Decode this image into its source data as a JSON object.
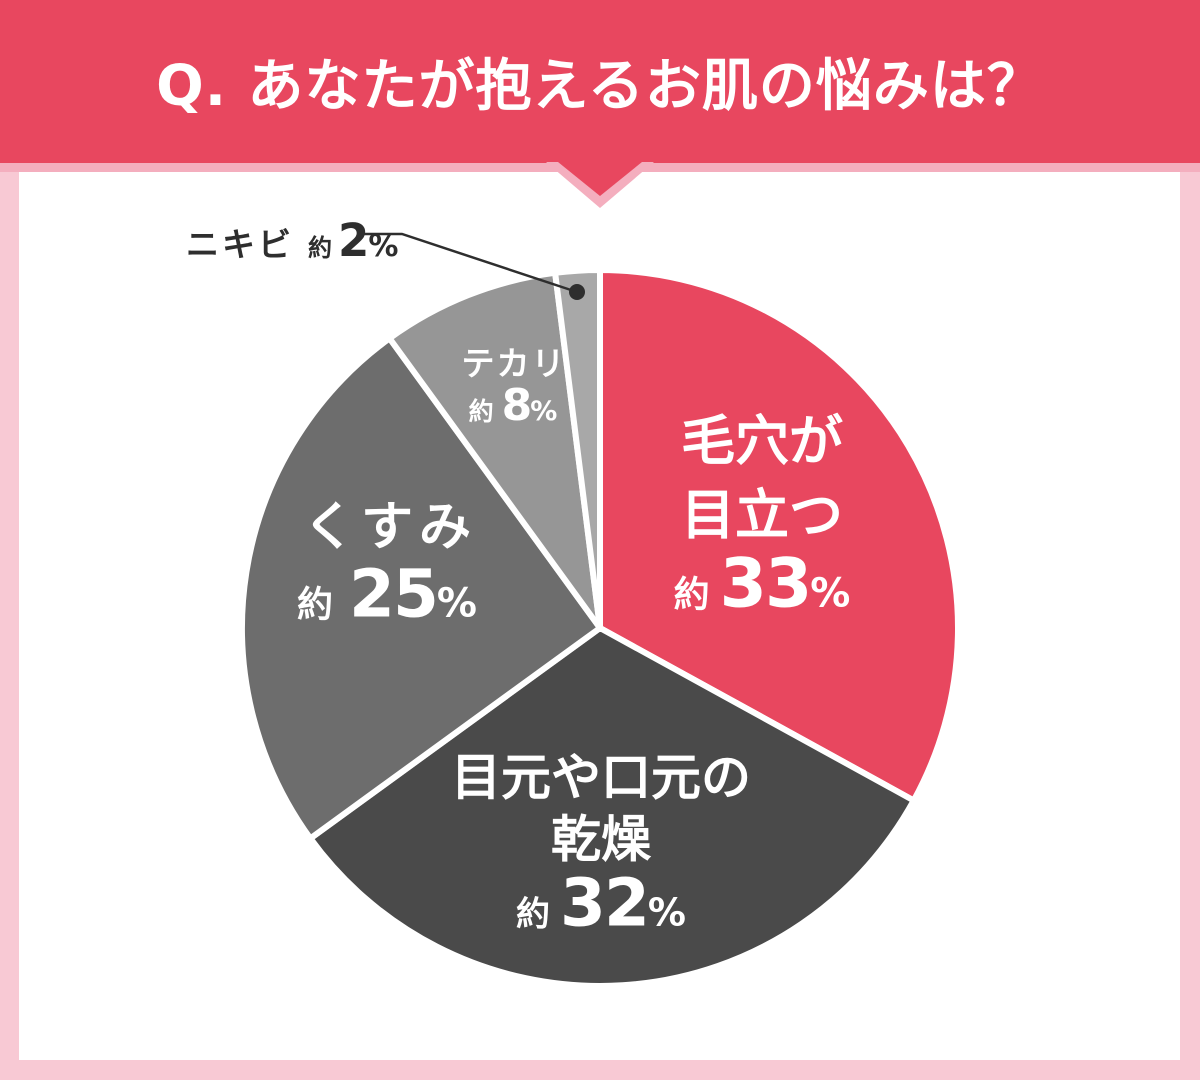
{
  "header": {
    "title": "Q. あなたが抱えるお肌の悩みは？"
  },
  "colors": {
    "banner_red": "#e8475f",
    "page_pink": "#f8c9d4",
    "tail_outline_pink": "#f4aebe",
    "panel_white": "#ffffff",
    "callout_ink": "#2e2e2e"
  },
  "chart_data": {
    "type": "pie",
    "title": "Q. あなたが抱えるお肌の悩みは？",
    "approx_prefix": "約",
    "unit": "%",
    "start_angle": "12-oclock",
    "direction": "clockwise",
    "slice_gap_color": "#ffffff",
    "slices": [
      {
        "label": "毛穴が目立つ",
        "label_lines": [
          "毛穴が",
          "目立つ"
        ],
        "value": 33,
        "color": "#e8475f",
        "label_style": "on-slice"
      },
      {
        "label": "目元や口元の乾燥",
        "label_lines": [
          "目元や口元の",
          "乾燥"
        ],
        "value": 32,
        "color": "#4a4a4a",
        "label_style": "on-slice"
      },
      {
        "label": "くすみ",
        "label_lines": [
          "くすみ"
        ],
        "value": 25,
        "color": "#6d6d6d",
        "label_style": "on-slice"
      },
      {
        "label": "テカリ",
        "label_lines": [
          "テカリ"
        ],
        "value": 8,
        "color": "#969696",
        "label_style": "on-slice"
      },
      {
        "label": "ニキビ",
        "label_lines": [
          "ニキビ"
        ],
        "value": 2,
        "color": "#a8a8a8",
        "label_style": "callout"
      }
    ]
  }
}
